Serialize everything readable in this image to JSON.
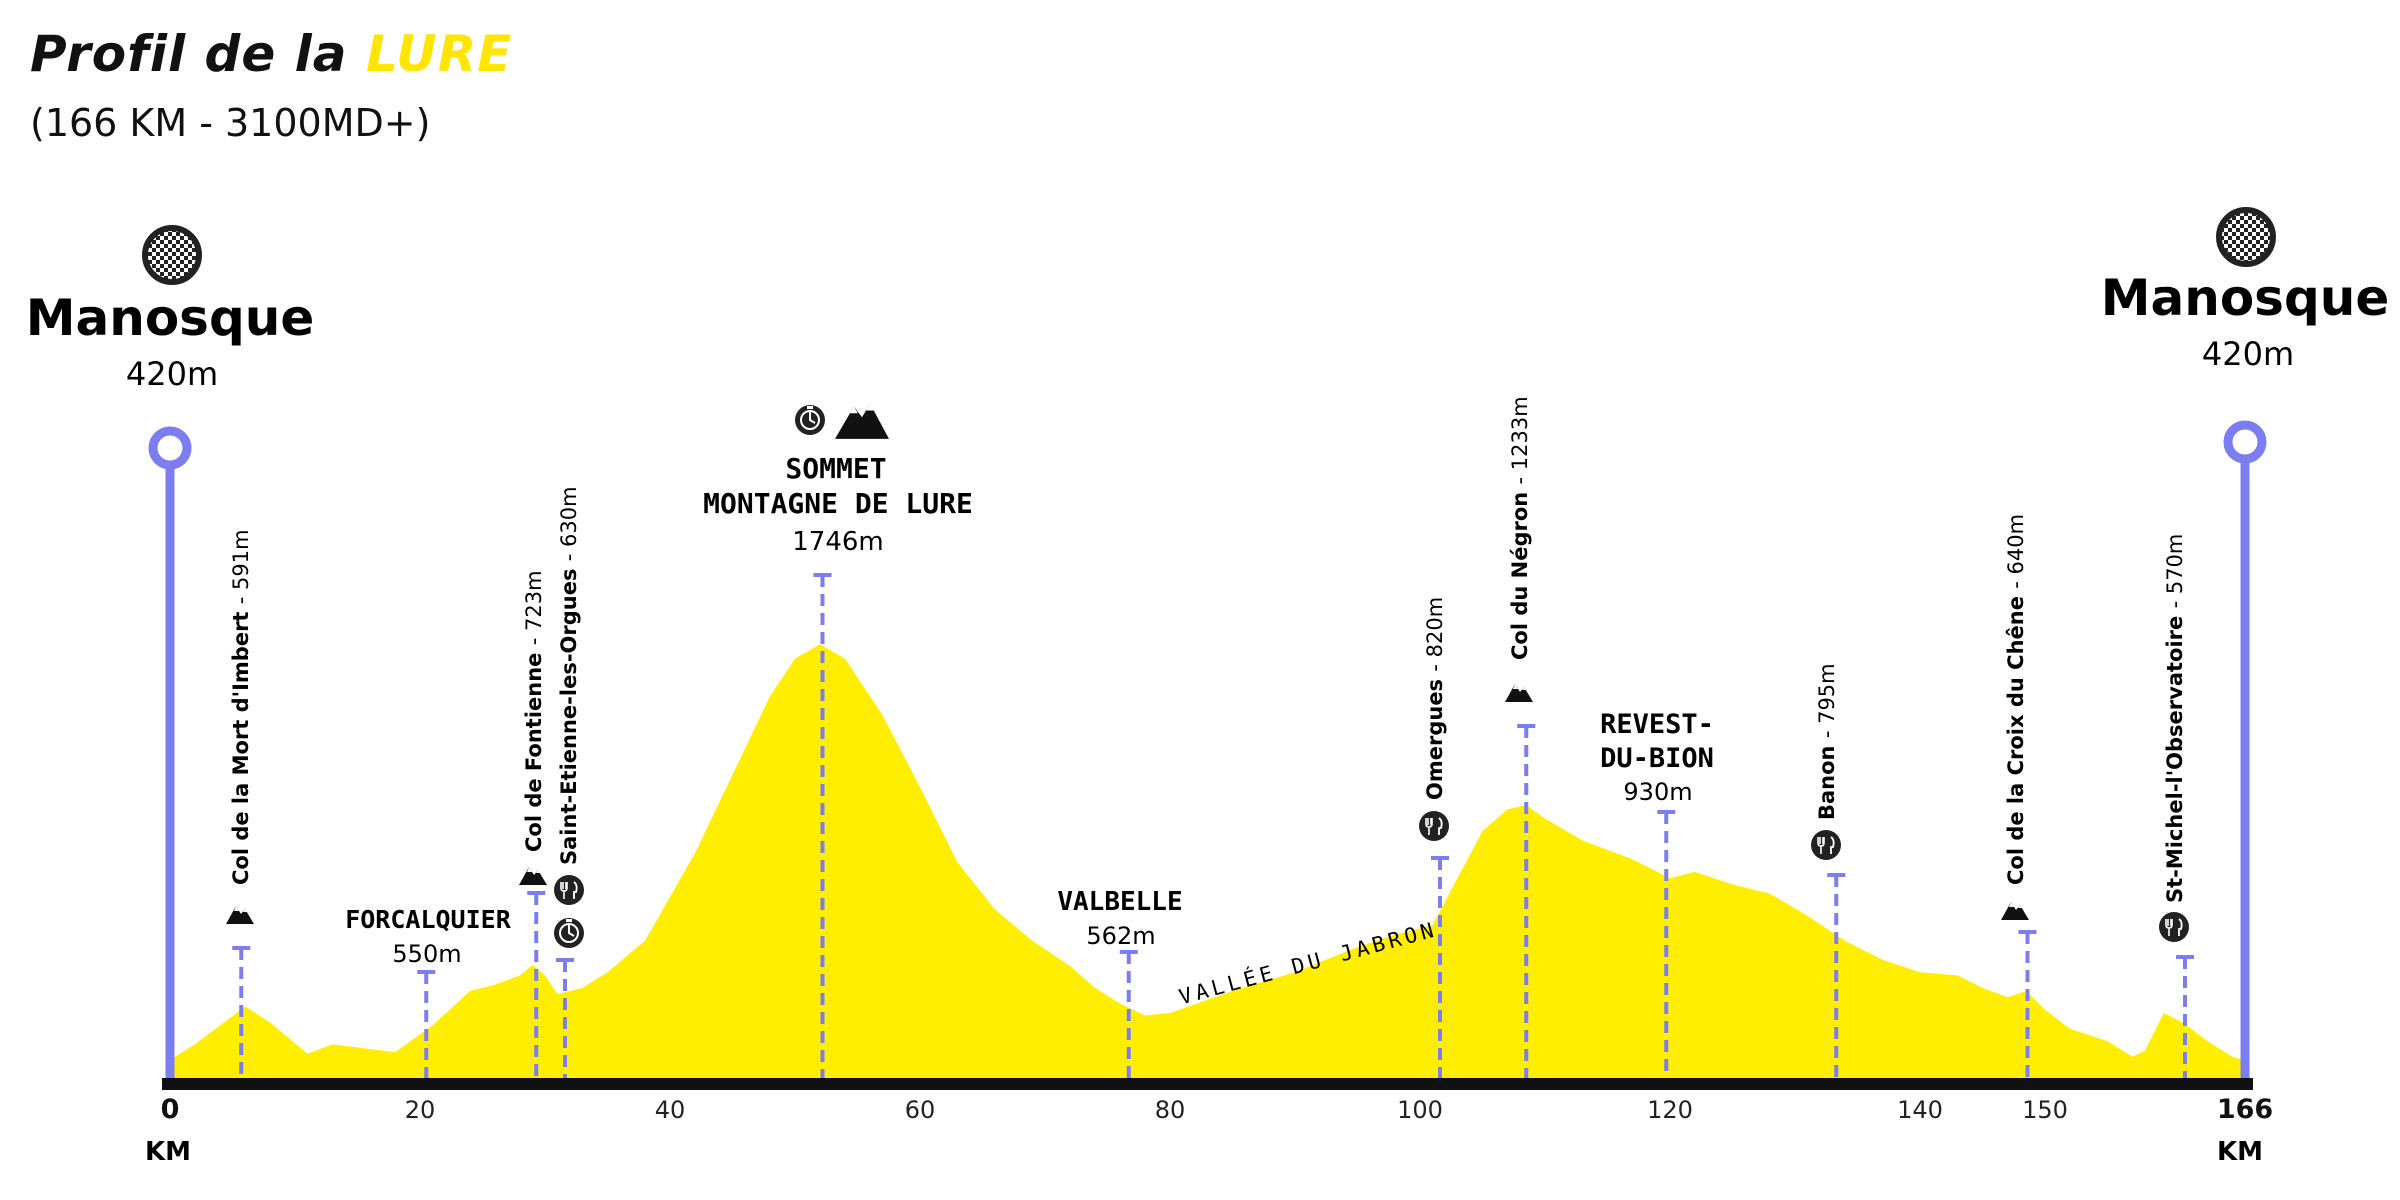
{
  "header": {
    "title": "Profil de la",
    "title_highlight": "LURE",
    "subtitle": "(166 KM - 3100MD+)"
  },
  "colors": {
    "profile_fill": "#ffee00",
    "marker_line": "#7b7df0",
    "axis": "#111111",
    "accent": "#ffe500"
  },
  "chart_data": {
    "type": "area",
    "title": "Profil de la LURE",
    "subtitle": "(166 KM - 3100MD+)",
    "xlabel": "KM",
    "x_range": [
      0,
      166
    ],
    "x_ticks": [
      {
        "value": 0,
        "label": "0"
      },
      {
        "value": 20,
        "label": "20"
      },
      {
        "value": 40,
        "label": "40"
      },
      {
        "value": 60,
        "label": "60"
      },
      {
        "value": 80,
        "label": "80"
      },
      {
        "value": 100,
        "label": "100"
      },
      {
        "value": 120,
        "label": "120"
      },
      {
        "value": 140,
        "label": "140"
      },
      {
        "value": 150,
        "label": "150"
      },
      {
        "value": 166,
        "label": "166"
      }
    ],
    "profile": {
      "x": [
        0,
        2,
        5,
        6,
        8,
        11,
        13,
        15,
        18,
        21,
        24,
        26,
        28,
        29,
        30,
        31,
        33,
        35,
        38,
        42,
        45,
        48,
        50,
        52,
        54,
        57,
        60,
        63,
        66,
        69,
        72,
        74,
        76,
        78,
        80,
        85,
        90,
        95,
        98,
        101,
        103,
        105,
        107,
        108.5,
        110,
        113,
        117,
        120,
        122,
        125,
        128,
        131,
        134,
        137,
        140,
        143,
        145,
        147,
        148.5,
        150,
        152,
        155,
        157,
        158,
        159.5,
        161,
        163,
        165,
        166
      ],
      "elevation": [
        420,
        470,
        560,
        591,
        540,
        440,
        470,
        460,
        445,
        530,
        640,
        660,
        690,
        723,
        690,
        630,
        650,
        700,
        800,
        1080,
        1330,
        1580,
        1700,
        1746,
        1700,
        1520,
        1290,
        1050,
        900,
        800,
        720,
        650,
        600,
        562,
        570,
        640,
        700,
        780,
        820,
        850,
        1000,
        1150,
        1220,
        1233,
        1190,
        1120,
        1060,
        1000,
        1020,
        980,
        950,
        880,
        800,
        740,
        700,
        690,
        650,
        620,
        640,
        580,
        520,
        480,
        430,
        450,
        570,
        540,
        480,
        430,
        420
      ]
    },
    "waypoints": [
      {
        "name": "Manosque",
        "elevation_label": "420m",
        "km": 0
      },
      {
        "name": "Col de la Mort d'Imbert",
        "elevation_label": "591m",
        "km": 5.7
      },
      {
        "name": "FORCALQUIER",
        "elevation_label": "550m",
        "km": 20.5
      },
      {
        "name": "Col de Fontienne",
        "elevation_label": "723m",
        "km": 29.3
      },
      {
        "name": "Saint-Etienne-les-Orgues",
        "elevation_label": "630m",
        "km": 31.6
      },
      {
        "name": "SOMMET MONTAGNE DE LURE",
        "elevation_label": "1746m",
        "km": 52.2
      },
      {
        "name": "VALBELLE",
        "elevation_label": "562m",
        "km": 76.7
      },
      {
        "name": "Omergues",
        "elevation_label": "820m",
        "km": 101.6
      },
      {
        "name": "Col du Négron",
        "elevation_label": "1233m",
        "km": 108.5
      },
      {
        "name": "REVEST-DU-BION",
        "elevation_label": "930m",
        "km": 119.7
      },
      {
        "name": "Banon",
        "elevation_label": "795m",
        "km": 133.3
      },
      {
        "name": "Col de la Croix du Chêne",
        "elevation_label": "640m",
        "km": 148.6
      },
      {
        "name": "St-Michel-l'Observatoire",
        "elevation_label": "570m",
        "km": 161.2
      },
      {
        "name": "Manosque",
        "elevation_label": "420m",
        "km": 166
      }
    ],
    "annotations": [
      "VALLÉE DU JABRON"
    ]
  },
  "labels": {
    "start_name": "Manosque",
    "start_elev": "420m",
    "end_name": "Manosque",
    "end_elev": "420m",
    "km_left": "KM",
    "km_right": "KM",
    "col_mort_imbert": "Col de la Mort d'Imbert",
    "col_mort_imbert_elev": "- 591m",
    "forcalquier": "FORCALQUIER",
    "forcalquier_elev": "550m",
    "col_fontienne": "Col de Fontienne",
    "col_fontienne_elev": "- 723m",
    "st_etienne": "Saint-Etienne-les-Orgues",
    "st_etienne_elev": "- 630m",
    "sommet_line1": "SOMMET",
    "sommet_line2": "MONTAGNE DE LURE",
    "sommet_elev": "1746m",
    "valbelle": "VALBELLE",
    "valbelle_elev": "562m",
    "vallee": "VALLÉE DU JABRON",
    "omergues": "Omergues",
    "omergues_elev": "- 820m",
    "col_negron": "Col du Négron",
    "col_negron_elev": "- 1233m",
    "revest_line1": "REVEST-",
    "revest_line2": "DU-BION",
    "revest_elev": "930m",
    "banon": "Banon",
    "banon_elev": "- 795m",
    "col_croix": "Col de la Croix du Chêne",
    "col_croix_elev": "- 640m",
    "st_michel": "St-Michel-l'Observatoire",
    "st_michel_elev": "- 570m"
  }
}
